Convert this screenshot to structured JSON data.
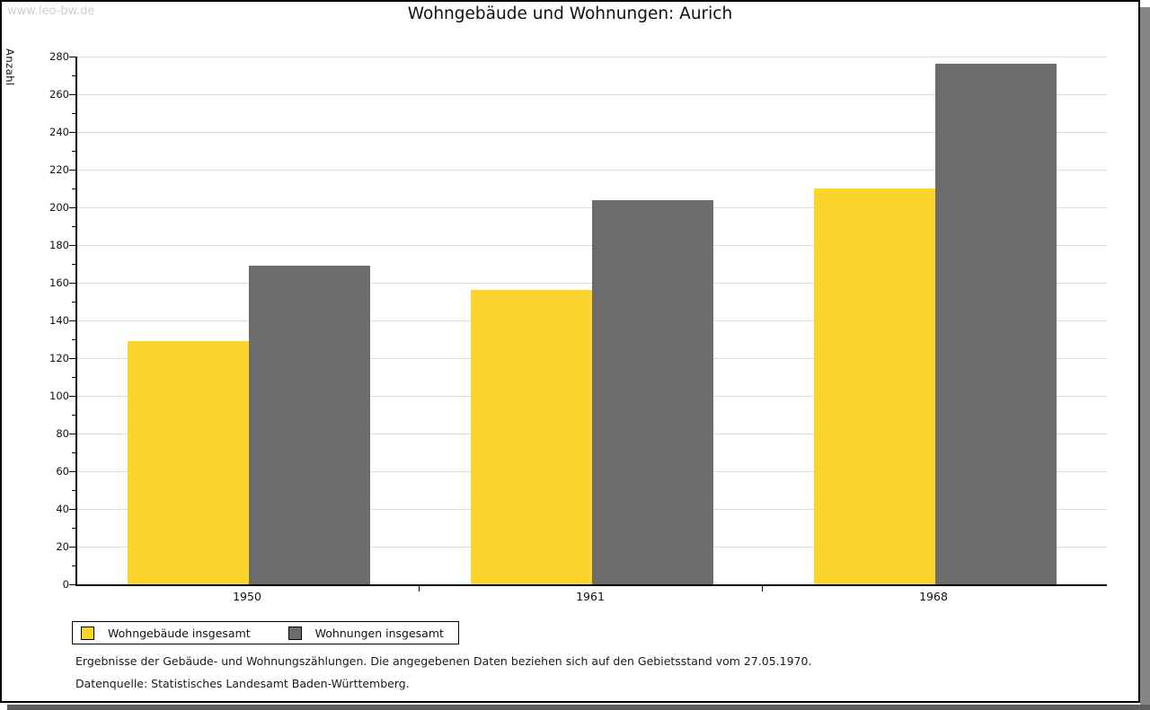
{
  "watermark": "www.leo-bw.de",
  "title": "Wohngebäude und Wohnungen: Aurich",
  "chart_data": {
    "type": "bar",
    "title": "Wohngebäude und Wohnungen: Aurich",
    "categories": [
      "1950",
      "1961",
      "1968"
    ],
    "series": [
      {
        "name": "Wohngebäude insgesamt",
        "color": "#fcd42e",
        "values": [
          129,
          156,
          210
        ]
      },
      {
        "name": "Wohnungen insgesamt",
        "color": "#6c6c6c",
        "values": [
          169,
          204,
          276
        ]
      }
    ],
    "xlabel": "",
    "ylabel": "Anzahl",
    "ylim": [
      0,
      280
    ],
    "ytick_step": 20,
    "ytick_minor_step": 10,
    "grid": true,
    "legend_position": "bottom-left"
  },
  "footnotes": [
    "Ergebnisse der Gebäude- und Wohnungszählungen. Die angegebenen Daten beziehen sich auf den Gebietsstand vom 27.05.1970.",
    "Datenquelle: Statistisches Landesamt Baden-Württemberg."
  ]
}
